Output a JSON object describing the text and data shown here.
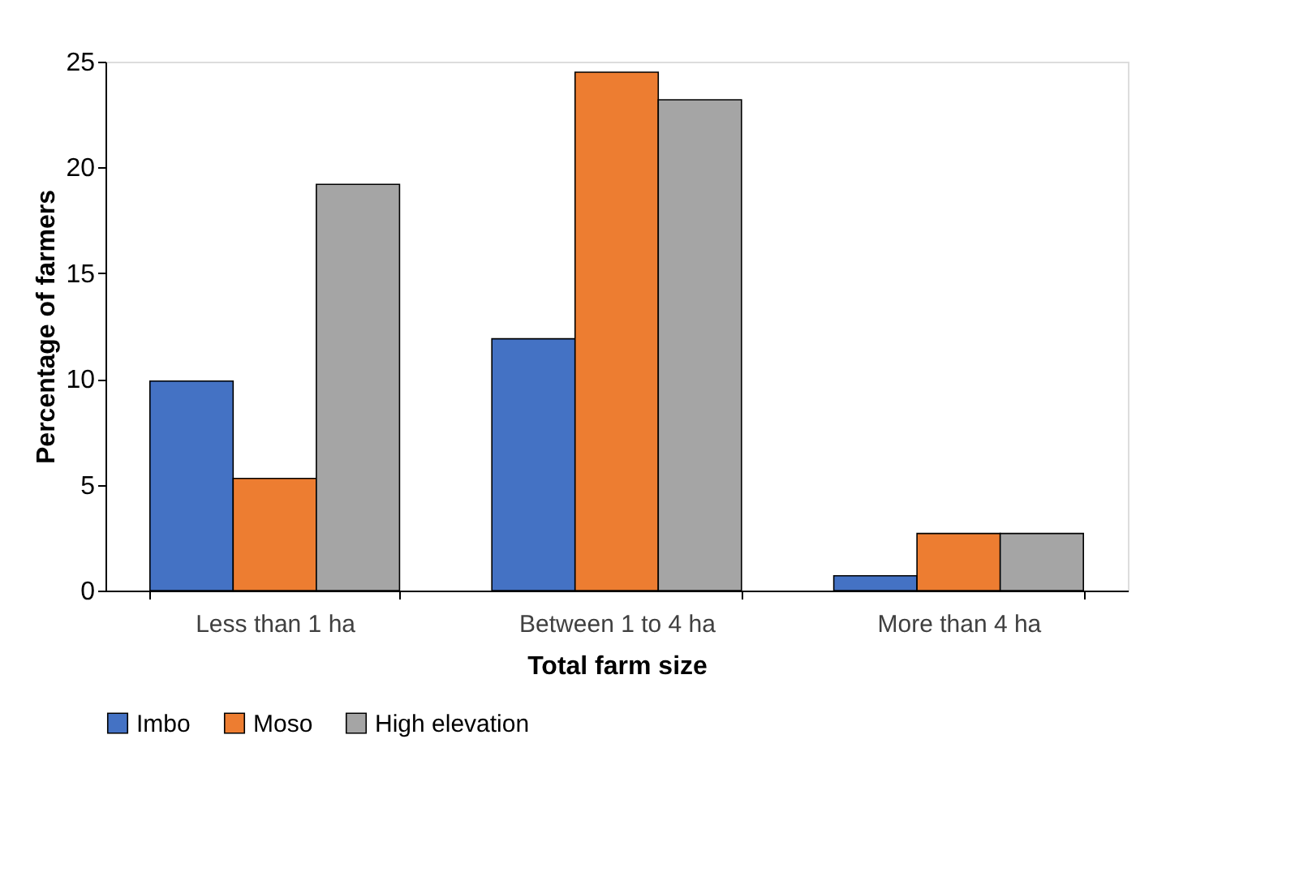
{
  "chart_data": {
    "type": "bar",
    "xlabel": "Total farm size",
    "ylabel": "Percentage of farmers",
    "categories": [
      "Less than 1 ha",
      "Between 1 to 4 ha",
      "More than 4 ha"
    ],
    "series": [
      {
        "name": "Imbo",
        "color": "#4472c4",
        "values": [
          9.9,
          11.9,
          0.7
        ]
      },
      {
        "name": "Moso",
        "color": "#ed7d31",
        "values": [
          5.3,
          24.5,
          2.7
        ]
      },
      {
        "name": "High elevation",
        "color": "#a5a5a5",
        "values": [
          19.2,
          23.2,
          2.7
        ]
      }
    ],
    "ylim": [
      0,
      25
    ],
    "yticks": [
      0,
      5,
      10,
      15,
      20,
      25
    ],
    "grid": false,
    "legend": "bottom"
  }
}
